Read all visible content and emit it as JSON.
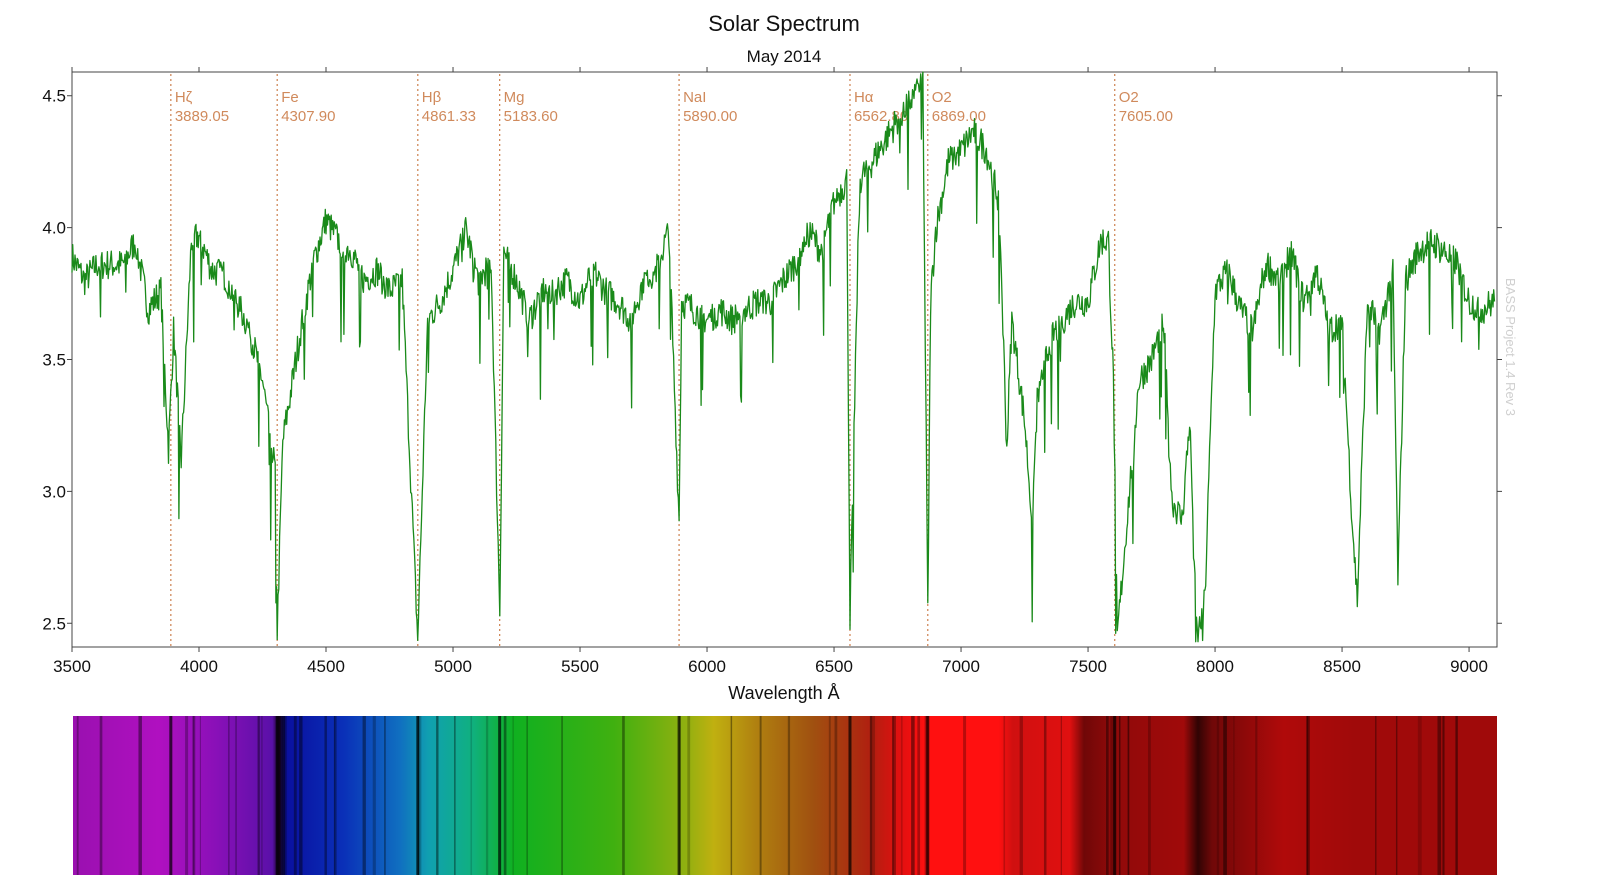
{
  "chart_data": {
    "type": "line",
    "title": "Solar Spectrum",
    "subtitle": "May 2014",
    "xlabel": "Wavelength Å",
    "ylabel": "",
    "xlim": [
      3500,
      9110
    ],
    "ylim": [
      2.41,
      4.59
    ],
    "xticks": [
      3500,
      4000,
      4500,
      5000,
      5500,
      6000,
      6500,
      7000,
      7500,
      8000,
      8500,
      9000
    ],
    "yticks": [
      "2.5",
      "3.0",
      "3.5",
      "4.0",
      "4.5"
    ],
    "grid": false,
    "legend": "none",
    "line_color": "#1a8a1a",
    "annotation_color": "#d08a5c",
    "watermark": "BASS Project 1.4 Rev 3",
    "lines": [
      {
        "name": "Hζ",
        "wavelength": "3889.05"
      },
      {
        "name": "Fe",
        "wavelength": "4307.90"
      },
      {
        "name": "Hβ",
        "wavelength": "4861.33"
      },
      {
        "name": "Mg",
        "wavelength": "5183.60"
      },
      {
        "name": "NaI",
        "wavelength": "5890.00"
      },
      {
        "name": "Hα",
        "wavelength": "6562.80"
      },
      {
        "name": "O2",
        "wavelength": "6869.00"
      },
      {
        "name": "O2",
        "wavelength": "7605.00"
      }
    ],
    "series": [
      {
        "x": [
          3500,
          3550,
          3600,
          3700,
          3750,
          3800,
          3850,
          3880,
          3900,
          3930,
          3970,
          4000,
          4050,
          4100,
          4150,
          4200,
          4250,
          4300,
          4308,
          4330,
          4400,
          4450,
          4500,
          4550,
          4600,
          4650,
          4700,
          4750,
          4800,
          4861,
          4900,
          4950,
          5000,
          5050,
          5100,
          5150,
          5184,
          5200,
          5250,
          5300,
          5350,
          5400,
          5450,
          5500,
          5550,
          5600,
          5650,
          5700,
          5750,
          5800,
          5850,
          5890,
          5900,
          5950,
          6000,
          6050,
          6100,
          6150,
          6200,
          6250,
          6300,
          6350,
          6400,
          6450,
          6500,
          6550,
          6563,
          6600,
          6650,
          6700,
          6750,
          6800,
          6850,
          6869,
          6880,
          6900,
          6950,
          7000,
          7050,
          7100,
          7150,
          7180,
          7200,
          7250,
          7280,
          7300,
          7350,
          7400,
          7450,
          7500,
          7550,
          7580,
          7600,
          7615,
          7650,
          7700,
          7750,
          7800,
          7830,
          7870,
          7900,
          7930,
          7960,
          8000,
          8050,
          8100,
          8150,
          8200,
          8250,
          8300,
          8350,
          8400,
          8450,
          8500,
          8540,
          8560,
          8600,
          8650,
          8700,
          8720,
          8750,
          8800,
          8850,
          8900,
          8950,
          9000,
          9050,
          9100
        ],
        "y": [
          3.89,
          3.8,
          3.86,
          3.86,
          3.95,
          3.69,
          3.76,
          3.16,
          3.61,
          3.12,
          3.95,
          3.97,
          3.84,
          3.82,
          3.72,
          3.61,
          3.42,
          3.08,
          2.47,
          3.19,
          3.61,
          3.87,
          4.03,
          3.95,
          3.91,
          3.8,
          3.84,
          3.76,
          3.8,
          2.44,
          3.65,
          3.72,
          3.84,
          3.99,
          3.8,
          3.87,
          2.55,
          3.91,
          3.8,
          3.65,
          3.76,
          3.76,
          3.8,
          3.72,
          3.84,
          3.76,
          3.72,
          3.65,
          3.8,
          3.84,
          3.99,
          2.89,
          3.72,
          3.69,
          3.65,
          3.69,
          3.65,
          3.69,
          3.72,
          3.72,
          3.8,
          3.87,
          3.99,
          3.91,
          4.1,
          4.18,
          2.53,
          4.18,
          4.25,
          4.33,
          4.41,
          4.48,
          4.56,
          2.53,
          3.72,
          3.99,
          4.25,
          4.29,
          4.37,
          4.29,
          4.1,
          3.16,
          3.65,
          3.27,
          2.89,
          3.34,
          3.57,
          3.65,
          3.72,
          3.72,
          3.95,
          3.95,
          3.42,
          2.45,
          2.85,
          3.42,
          3.5,
          3.65,
          2.97,
          2.89,
          3.27,
          2.44,
          2.59,
          3.76,
          3.84,
          3.69,
          3.61,
          3.87,
          3.8,
          3.91,
          3.72,
          3.84,
          3.61,
          3.65,
          2.89,
          2.59,
          3.72,
          3.61,
          3.84,
          2.67,
          3.8,
          3.91,
          3.95,
          3.91,
          3.87,
          3.72,
          3.69,
          3.72
        ]
      }
    ]
  }
}
